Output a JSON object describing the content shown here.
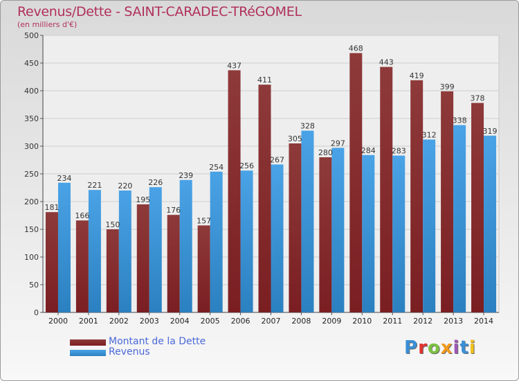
{
  "title": "Revenus/Dette - SAINT-CARADEC-TRéGOMEL",
  "subtitle": "(en milliers d'€)",
  "legend": {
    "debt_label": "Montant de la Dette",
    "revenue_label": "Revenus"
  },
  "brand": {
    "letters": [
      {
        "ch": "P",
        "color": "#3a8fd6"
      },
      {
        "ch": "r",
        "color": "#e3342f"
      },
      {
        "ch": "o",
        "color": "#7cc242"
      },
      {
        "ch": "x",
        "color": "#f29a1d"
      },
      {
        "ch": "i",
        "color": "#9b59b6"
      },
      {
        "ch": "t",
        "color": "#3a8fd6"
      },
      {
        "ch": "i",
        "color": "#f2c21d"
      }
    ]
  },
  "colors": {
    "debt": "#7a1e22",
    "debt_light": "#8e3a3a",
    "revenue": "#4aa3e6",
    "revenue_dark": "#2b80c0"
  },
  "chart_data": {
    "type": "bar",
    "categories": [
      "2000",
      "2001",
      "2002",
      "2003",
      "2004",
      "2005",
      "2006",
      "2007",
      "2008",
      "2009",
      "2010",
      "2011",
      "2012",
      "2013",
      "2014"
    ],
    "series": [
      {
        "name": "Montant de la Dette",
        "values": [
          181,
          166,
          150,
          195,
          176,
          157,
          437,
          411,
          305,
          280,
          468,
          443,
          419,
          399,
          378
        ]
      },
      {
        "name": "Revenus",
        "values": [
          234,
          221,
          220,
          226,
          239,
          254,
          256,
          267,
          328,
          297,
          284,
          283,
          312,
          338,
          319
        ]
      }
    ],
    "ylim": [
      0,
      500
    ],
    "yticks": [
      0,
      50,
      100,
      150,
      200,
      250,
      300,
      350,
      400,
      450,
      500
    ],
    "grid": true
  }
}
